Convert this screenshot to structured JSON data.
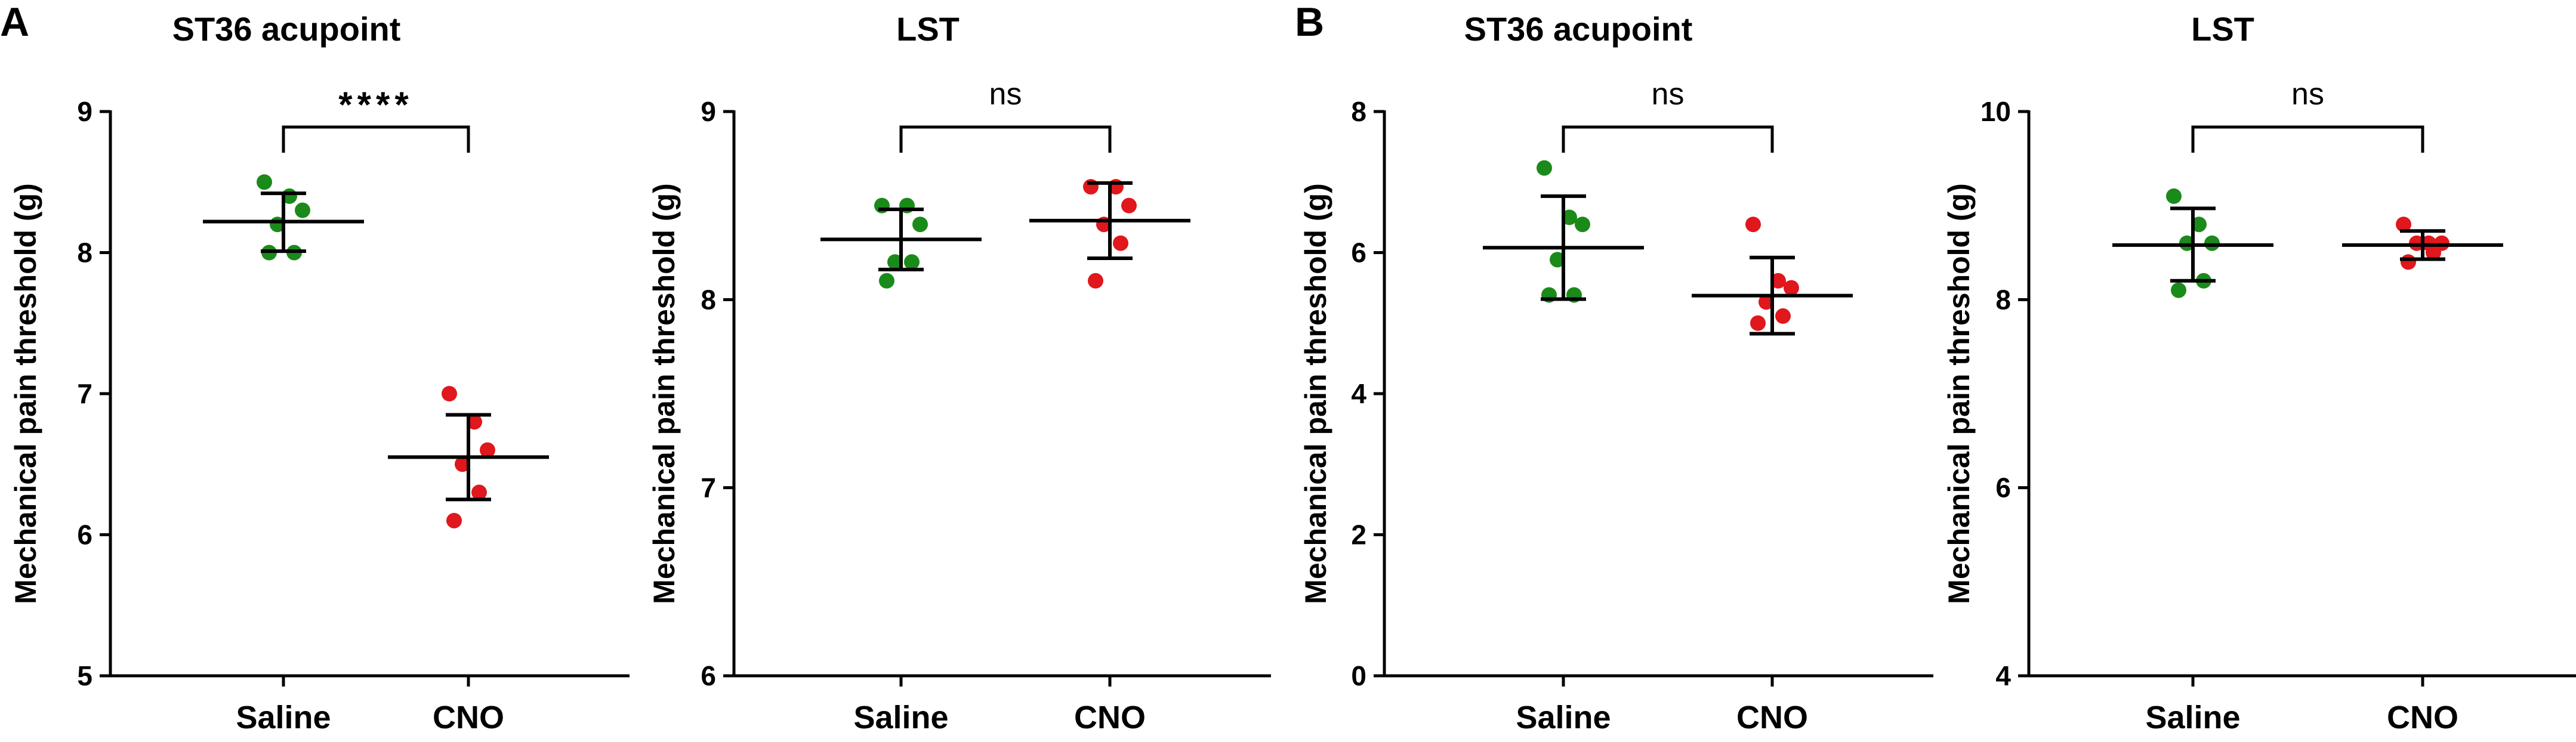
{
  "panel_letters": [
    "A",
    "B"
  ],
  "chart_data": [
    {
      "type": "scatter",
      "panel": "A",
      "title": "ST36 acupoint",
      "ylabel": "Mechanical pain threshold (g)",
      "xlabel": "",
      "ylim": [
        5,
        9
      ],
      "yticks": [
        5,
        6,
        7,
        8,
        9
      ],
      "categories": [
        "Saline",
        "CNO"
      ],
      "colors": [
        "#1a8a1a",
        "#e0171c"
      ],
      "points": [
        [
          8.5,
          8.4,
          8.3,
          8.2,
          8.0,
          8.0
        ],
        [
          7.0,
          6.8,
          6.6,
          6.5,
          6.3,
          6.1
        ]
      ],
      "mean": [
        8.22,
        6.55
      ],
      "sd_low": [
        8.01,
        6.25
      ],
      "sd_high": [
        8.42,
        6.85
      ],
      "significance": "****"
    },
    {
      "type": "scatter",
      "panel": "",
      "title": "LST",
      "ylabel": "Mechanical pain threshold (g)",
      "xlabel": "",
      "ylim": [
        6,
        9
      ],
      "yticks": [
        6,
        7,
        8,
        9
      ],
      "categories": [
        "Saline",
        "CNO"
      ],
      "colors": [
        "#1a8a1a",
        "#e0171c"
      ],
      "points": [
        [
          8.5,
          8.5,
          8.4,
          8.2,
          8.2,
          8.1
        ],
        [
          8.6,
          8.6,
          8.5,
          8.4,
          8.3,
          8.1
        ]
      ],
      "mean": [
        8.32,
        8.42
      ],
      "sd_low": [
        8.16,
        8.22
      ],
      "sd_high": [
        8.48,
        8.62
      ],
      "significance": "ns"
    },
    {
      "type": "scatter",
      "panel": "B",
      "title": "ST36 acupoint",
      "ylabel": "Mechanical pain threshold (g)",
      "xlabel": "",
      "ylim": [
        0,
        8
      ],
      "yticks": [
        0,
        2,
        4,
        6,
        8
      ],
      "categories": [
        "Saline",
        "CNO"
      ],
      "colors": [
        "#1a8a1a",
        "#e0171c"
      ],
      "points": [
        [
          7.2,
          6.5,
          6.4,
          5.9,
          5.4,
          5.4
        ],
        [
          6.4,
          5.6,
          5.5,
          5.3,
          5.1,
          5.0
        ]
      ],
      "mean": [
        6.07,
        5.39
      ],
      "sd_low": [
        5.34,
        4.85
      ],
      "sd_high": [
        6.8,
        5.93
      ],
      "significance": "ns"
    },
    {
      "type": "scatter",
      "panel": "",
      "title": "LST",
      "ylabel": "Mechanical pain threshold (g)",
      "xlabel": "",
      "ylim": [
        4,
        10
      ],
      "yticks": [
        4,
        6,
        8,
        10
      ],
      "categories": [
        "Saline",
        "CNO"
      ],
      "colors": [
        "#1a8a1a",
        "#e0171c"
      ],
      "points": [
        [
          9.1,
          8.8,
          8.6,
          8.6,
          8.2,
          8.1
        ],
        [
          8.8,
          8.6,
          8.6,
          8.6,
          8.5,
          8.4
        ]
      ],
      "mean": [
        8.58,
        8.58
      ],
      "sd_low": [
        8.2,
        8.43
      ],
      "sd_high": [
        8.97,
        8.73
      ],
      "significance": "ns"
    }
  ]
}
